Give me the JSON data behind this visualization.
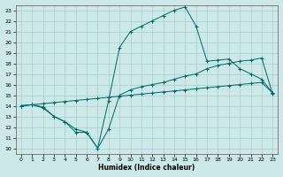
{
  "title": "",
  "xlabel": "Humidex (Indice chaleur)",
  "ylabel": "",
  "xlim": [
    -0.5,
    23.5
  ],
  "ylim": [
    9.5,
    23.5
  ],
  "yticks": [
    10,
    11,
    12,
    13,
    14,
    15,
    16,
    17,
    18,
    19,
    20,
    21,
    22,
    23
  ],
  "xticks": [
    0,
    1,
    2,
    3,
    4,
    5,
    6,
    7,
    8,
    9,
    10,
    11,
    12,
    13,
    14,
    15,
    16,
    17,
    18,
    19,
    20,
    21,
    22,
    23
  ],
  "bg_color": "#cce8e8",
  "grid_color": "#aacccc",
  "line_color": "#006666",
  "line1_x": [
    0,
    1,
    2,
    3,
    4,
    5,
    6,
    7,
    8,
    9,
    10,
    11,
    12,
    13,
    14,
    15,
    16,
    17,
    18,
    19,
    20,
    21,
    22,
    23
  ],
  "line1_y": [
    14.0,
    14.1,
    13.8,
    13.0,
    12.5,
    11.8,
    11.5,
    10.0,
    11.8,
    15.0,
    15.5,
    15.8,
    16.0,
    16.2,
    16.5,
    16.8,
    17.0,
    17.5,
    17.8,
    18.0,
    18.2,
    18.3,
    18.5,
    15.1
  ],
  "line2_x": [
    0,
    1,
    2,
    3,
    4,
    5,
    6,
    7,
    8,
    9,
    10,
    11,
    12,
    13,
    14,
    15,
    16,
    17,
    18,
    19,
    20,
    21,
    22,
    23
  ],
  "line2_y": [
    14.0,
    14.1,
    13.9,
    13.0,
    12.5,
    11.5,
    11.5,
    10.0,
    14.5,
    19.5,
    21.0,
    21.5,
    22.0,
    22.5,
    23.0,
    23.3,
    21.5,
    18.2,
    18.3,
    18.4,
    17.5,
    17.0,
    16.5,
    15.2
  ],
  "line3_x": [
    0,
    1,
    2,
    3,
    4,
    5,
    6,
    7,
    8,
    9,
    10,
    11,
    12,
    13,
    14,
    15,
    16,
    17,
    18,
    19,
    20,
    21,
    22,
    23
  ],
  "line3_y": [
    14.0,
    14.1,
    14.2,
    14.3,
    14.4,
    14.5,
    14.6,
    14.7,
    14.8,
    14.9,
    15.0,
    15.1,
    15.2,
    15.3,
    15.4,
    15.5,
    15.6,
    15.7,
    15.8,
    15.9,
    16.0,
    16.1,
    16.2,
    15.2
  ]
}
